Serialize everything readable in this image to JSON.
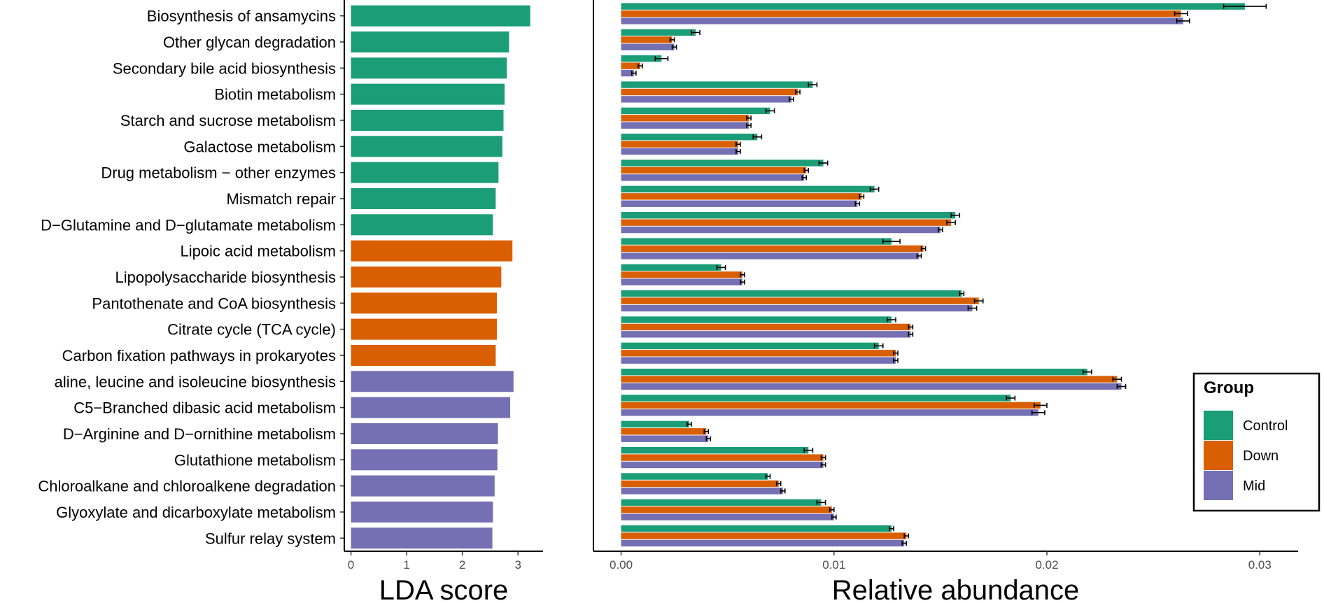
{
  "chart_data": [
    {
      "type": "bar",
      "orientation": "horizontal",
      "title": "",
      "xlabel": "LDA score",
      "ylabel": "",
      "xlim": [
        -0.12,
        3.45
      ],
      "xticks": [
        0,
        1,
        2,
        3
      ],
      "grid": false,
      "categories": [
        "Biosynthesis of ansamycins",
        "Other glycan degradation",
        "Secondary bile acid biosynthesis",
        "Biotin metabolism",
        "Starch and sucrose metabolism",
        "Galactose metabolism",
        "Drug metabolism − other enzymes",
        "Mismatch repair",
        "D−Glutamine and D−glutamate metabolism",
        "Lipoic acid metabolism",
        "Lipopolysaccharide biosynthesis",
        "Pantothenate and CoA biosynthesis",
        "Citrate cycle (TCA cycle)",
        "Carbon fixation pathways in prokaryotes",
        "aline, leucine and isoleucine biosynthesis",
        "C5−Branched dibasic acid metabolism",
        "D−Arginine and D−ornithine metabolism",
        "Glutathione metabolism",
        "Chloroalkane and chloroalkene degradation",
        "Glyoxylate and dicarboxylate metabolism",
        "Sulfur relay system"
      ],
      "values": [
        3.22,
        2.84,
        2.8,
        2.76,
        2.74,
        2.72,
        2.65,
        2.6,
        2.55,
        2.9,
        2.7,
        2.62,
        2.62,
        2.6,
        2.92,
        2.86,
        2.64,
        2.63,
        2.58,
        2.55,
        2.54
      ],
      "bar_groups": [
        "Control",
        "Control",
        "Control",
        "Control",
        "Control",
        "Control",
        "Control",
        "Control",
        "Control",
        "Down",
        "Down",
        "Down",
        "Down",
        "Down",
        "Mid",
        "Mid",
        "Mid",
        "Mid",
        "Mid",
        "Mid",
        "Mid"
      ]
    },
    {
      "type": "bar",
      "orientation": "horizontal",
      "grouped": true,
      "title": "",
      "xlabel": "Relative abundance",
      "ylabel": "",
      "xlim": [
        -0.0013,
        0.0318
      ],
      "xticks": [
        0.0,
        0.01,
        0.02,
        0.03
      ],
      "xtick_labels": [
        "0.00",
        "0.01",
        "0.02",
        "0.03"
      ],
      "grid": false,
      "series": [
        {
          "name": "Control",
          "values": [
            0.0293,
            0.0035,
            0.0019,
            0.009,
            0.007,
            0.0064,
            0.0095,
            0.0119,
            0.0157,
            0.0127,
            0.0047,
            0.016,
            0.0127,
            0.0121,
            0.0219,
            0.0183,
            0.0032,
            0.0088,
            0.0069,
            0.0094,
            0.0127
          ],
          "errors": [
            0.001,
            0.0002,
            0.0003,
            0.0002,
            0.0002,
            0.0002,
            0.0002,
            0.0002,
            0.0002,
            0.0004,
            0.0002,
            0.0001,
            0.0002,
            0.0002,
            0.0002,
            0.0002,
            0.0001,
            0.0002,
            0.0001,
            0.0002,
            0.0001
          ]
        },
        {
          "name": "Down",
          "values": [
            0.0263,
            0.0024,
            0.0009,
            0.0083,
            0.006,
            0.0055,
            0.0087,
            0.0113,
            0.0155,
            0.0142,
            0.0057,
            0.0168,
            0.0136,
            0.0129,
            0.0233,
            0.0197,
            0.004,
            0.0095,
            0.0074,
            0.0099,
            0.0134
          ],
          "errors": [
            0.0003,
            0.0001,
            0.0001,
            0.0001,
            0.0001,
            0.0001,
            0.0001,
            0.0001,
            0.0002,
            0.0001,
            0.0001,
            0.0002,
            0.0001,
            0.0001,
            0.0002,
            0.0003,
            0.0001,
            0.0001,
            0.0001,
            0.0001,
            0.0001
          ]
        },
        {
          "name": "Mid",
          "values": [
            0.0264,
            0.0025,
            0.0006,
            0.008,
            0.006,
            0.0055,
            0.0086,
            0.0111,
            0.015,
            0.014,
            0.0057,
            0.0165,
            0.0136,
            0.0129,
            0.0235,
            0.0196,
            0.0041,
            0.0095,
            0.0076,
            0.01,
            0.0133
          ],
          "errors": [
            0.0003,
            0.0001,
            0.0001,
            0.0001,
            0.0001,
            0.0001,
            0.0001,
            0.0001,
            0.0001,
            0.0001,
            0.0001,
            0.0002,
            0.0001,
            0.0001,
            0.0002,
            0.0003,
            0.0001,
            0.0001,
            0.0001,
            0.0001,
            0.0001
          ]
        }
      ],
      "legend": {
        "title": "Group",
        "entries": [
          "Control",
          "Down",
          "Mid"
        ],
        "position": "bottom-right"
      }
    }
  ],
  "colors": {
    "Control": "#1b9e77",
    "Down": "#d95f02",
    "Mid": "#7570b3",
    "axis": "#000000",
    "tick_label": "#4d4d4d",
    "label": "#000000"
  }
}
